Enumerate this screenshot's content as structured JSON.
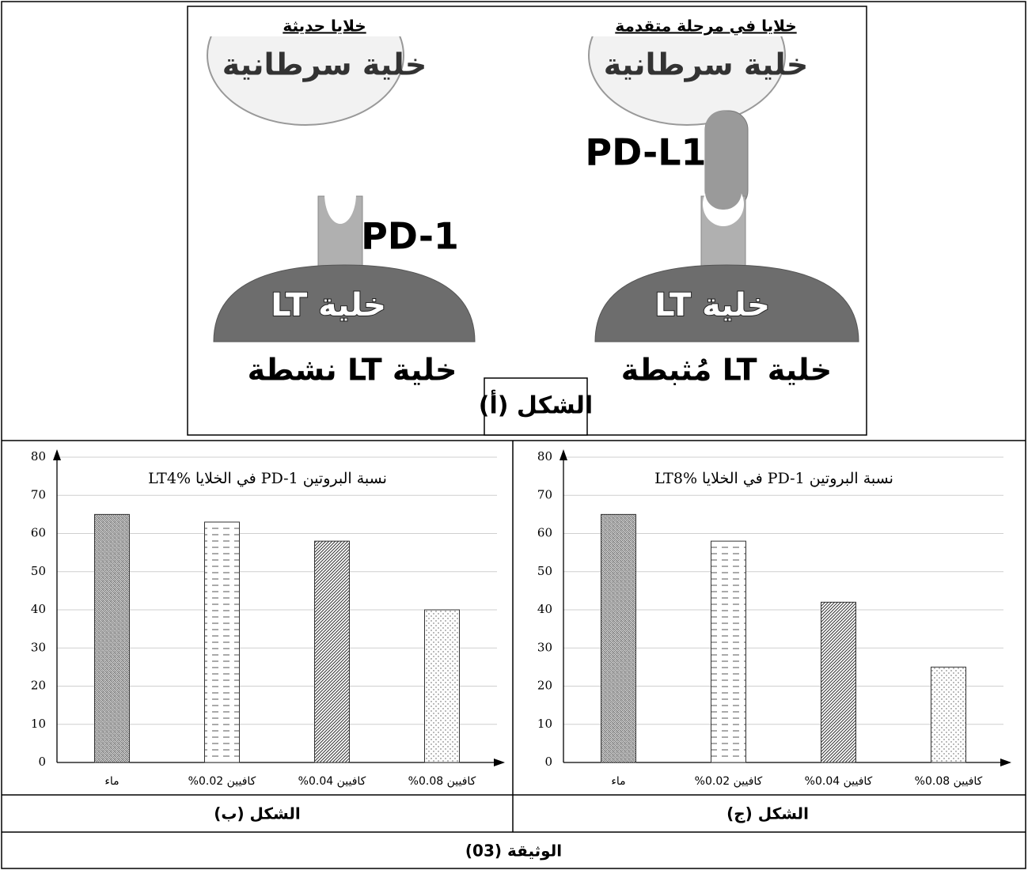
{
  "figure_a": {
    "left_header": "خلايا حديثة",
    "right_header": "خلايا في مرحلة متقدمة",
    "left_cancer": "خلية سرطانية",
    "right_cancer": "خلية سرطانية",
    "pd1": "PD-1",
    "pdl1": "PD-L1",
    "left_lt": "خلية LT",
    "right_lt": "خلية LT",
    "left_caption": "خلية LT نشطة",
    "right_caption": "خلية LT مُثبطة",
    "label": "الشكل (أ)"
  },
  "chart_data": [
    {
      "type": "bar",
      "title": "نسبة البروتين PD-1 في الخلايا LT4%",
      "categories": [
        "ماء",
        "كافيين 0.02%",
        "كافيين 0.04%",
        "كافيين 0.08%"
      ],
      "values": [
        65,
        63,
        58,
        40
      ],
      "ylim": [
        0,
        80
      ],
      "yticks": [
        0,
        10,
        20,
        30,
        40,
        50,
        60,
        70,
        80
      ],
      "grid": true
    },
    {
      "type": "bar",
      "title": "نسبة البروتين PD-1 في الخلايا LT8%",
      "categories": [
        "ماء",
        "كافيين 0.02%",
        "كافيين 0.04%",
        "كافيين 0.08%"
      ],
      "values": [
        65,
        58,
        42,
        25
      ],
      "ylim": [
        0,
        80
      ],
      "yticks": [
        0,
        10,
        20,
        30,
        40,
        50,
        60,
        70,
        80
      ],
      "grid": true
    }
  ],
  "captions": [
    "الشكل (ب)",
    "الشكل (ج)"
  ],
  "footer": "الوثيقة (03)"
}
